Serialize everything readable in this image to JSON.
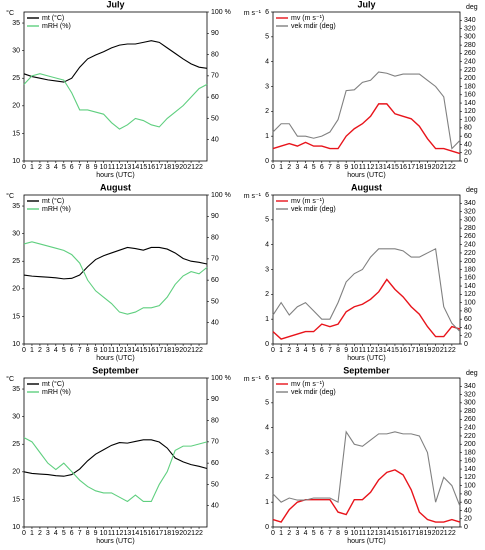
{
  "chart_data": [
    {
      "type": "line",
      "title": "July",
      "xlabel": "hours (UTC)",
      "ylabel": "°C",
      "legend": "upper left",
      "x": [
        0,
        1,
        2,
        3,
        4,
        5,
        6,
        7,
        8,
        9,
        10,
        11,
        12,
        13,
        14,
        15,
        16,
        17,
        18,
        19,
        20,
        21,
        22,
        23
      ],
      "xlim": [
        0,
        23
      ],
      "xticks": [
        0,
        1,
        2,
        3,
        4,
        5,
        6,
        7,
        8,
        9,
        10,
        11,
        12,
        13,
        14,
        15,
        16,
        17,
        18,
        19,
        20,
        21,
        22
      ],
      "ylim": [
        10,
        37
      ],
      "yticks": [
        10,
        15,
        20,
        25,
        30,
        35
      ],
      "y2lim": [
        30,
        100
      ],
      "y2ticks": [
        40,
        50,
        60,
        70,
        80,
        90,
        {
          "value": 100,
          "label": "100 %"
        }
      ],
      "series": [
        {
          "name": "mt (°C)",
          "color": "#000000",
          "values": [
            25.8,
            25.3,
            25,
            24.7,
            24.5,
            24.3,
            25,
            27,
            28.5,
            29.2,
            29.8,
            30.5,
            31,
            31.2,
            31.2,
            31.5,
            31.8,
            31.5,
            30.5,
            29.5,
            28.5,
            27.6,
            27,
            26.8
          ]
        },
        {
          "name": "mRH (%)",
          "color": "#5fcf7f",
          "axis": "y2",
          "values": [
            66,
            70,
            71,
            70,
            69,
            68,
            62,
            54,
            54,
            53,
            52,
            48,
            45,
            47,
            50,
            49,
            47,
            46,
            50,
            53,
            56,
            60,
            64,
            66
          ]
        }
      ]
    },
    {
      "type": "line",
      "title": "July",
      "xlabel": "hours (UTC)",
      "ylabel": "m s⁻¹",
      "y2label": "deg",
      "legend": "upper left",
      "x": [
        0,
        1,
        2,
        3,
        4,
        5,
        6,
        7,
        8,
        9,
        10,
        11,
        12,
        13,
        14,
        15,
        16,
        17,
        18,
        19,
        20,
        21,
        22,
        23
      ],
      "xlim": [
        0,
        23
      ],
      "xticks": [
        0,
        1,
        2,
        3,
        4,
        5,
        6,
        7,
        8,
        9,
        10,
        11,
        12,
        13,
        14,
        15,
        16,
        17,
        18,
        19,
        20,
        21,
        22
      ],
      "ylim": [
        0,
        6
      ],
      "yticks": [
        0,
        1,
        2,
        3,
        4,
        5,
        6
      ],
      "y2lim": [
        0,
        360
      ],
      "y2ticks": [
        0,
        20,
        40,
        60,
        80,
        100,
        120,
        140,
        160,
        180,
        200,
        220,
        240,
        260,
        280,
        300,
        320,
        340
      ],
      "series": [
        {
          "name": "mv (m s⁻¹)",
          "color": "#e8141b",
          "values": [
            0.5,
            0.6,
            0.7,
            0.6,
            0.75,
            0.6,
            0.6,
            0.5,
            0.5,
            1.0,
            1.3,
            1.5,
            1.8,
            2.3,
            2.3,
            1.9,
            1.8,
            1.7,
            1.4,
            0.9,
            0.5,
            0.5,
            0.4,
            0.3
          ]
        },
        {
          "name": "vek mdir (deg)",
          "color": "#808080",
          "axis": "y2",
          "values": [
            70,
            90,
            90,
            60,
            60,
            55,
            60,
            70,
            100,
            170,
            172,
            190,
            195,
            215,
            212,
            205,
            210,
            210,
            210,
            195,
            180,
            155,
            30,
            50
          ]
        }
      ]
    },
    {
      "type": "line",
      "title": "August",
      "xlabel": "hours (UTC)",
      "ylabel": "°C",
      "legend": "upper left",
      "x": [
        0,
        1,
        2,
        3,
        4,
        5,
        6,
        7,
        8,
        9,
        10,
        11,
        12,
        13,
        14,
        15,
        16,
        17,
        18,
        19,
        20,
        21,
        22,
        23
      ],
      "xlim": [
        0,
        23
      ],
      "xticks": [
        0,
        1,
        2,
        3,
        4,
        5,
        6,
        7,
        8,
        9,
        10,
        11,
        12,
        13,
        14,
        15,
        16,
        17,
        18,
        19,
        20,
        21,
        22
      ],
      "ylim": [
        10,
        37
      ],
      "yticks": [
        10,
        15,
        20,
        25,
        30,
        35
      ],
      "y2lim": [
        30,
        100
      ],
      "y2ticks": [
        40,
        50,
        60,
        70,
        80,
        90,
        {
          "value": 100,
          "label": "100 %"
        }
      ],
      "series": [
        {
          "name": "mt (°C)",
          "color": "#000000",
          "values": [
            22.5,
            22.3,
            22.2,
            22.1,
            22,
            21.8,
            21.9,
            22.5,
            24,
            25.3,
            26,
            26.5,
            27,
            27.5,
            27.3,
            27,
            27.5,
            27.5,
            27.2,
            26.5,
            25.5,
            25,
            24.8,
            24.5
          ]
        },
        {
          "name": "mRH (%)",
          "color": "#5fcf7f",
          "axis": "y2",
          "values": [
            77,
            78,
            77,
            76,
            75,
            74,
            72,
            68,
            60,
            55,
            52,
            49,
            45,
            44,
            45,
            47,
            47,
            48,
            52,
            58,
            62,
            64,
            63,
            66
          ]
        }
      ]
    },
    {
      "type": "line",
      "title": "August",
      "xlabel": "hours (UTC)",
      "ylabel": "m s⁻¹",
      "y2label": "deg",
      "legend": "upper left",
      "x": [
        0,
        1,
        2,
        3,
        4,
        5,
        6,
        7,
        8,
        9,
        10,
        11,
        12,
        13,
        14,
        15,
        16,
        17,
        18,
        19,
        20,
        21,
        22,
        23
      ],
      "xlim": [
        0,
        23
      ],
      "xticks": [
        0,
        1,
        2,
        3,
        4,
        5,
        6,
        7,
        8,
        9,
        10,
        11,
        12,
        13,
        14,
        15,
        16,
        17,
        18,
        19,
        20,
        21,
        22
      ],
      "ylim": [
        0,
        6
      ],
      "yticks": [
        0,
        1,
        2,
        3,
        4,
        5,
        6
      ],
      "y2lim": [
        0,
        360
      ],
      "y2ticks": [
        0,
        20,
        40,
        60,
        80,
        100,
        120,
        140,
        160,
        180,
        200,
        220,
        240,
        260,
        280,
        300,
        320,
        340
      ],
      "series": [
        {
          "name": "mv (m s⁻¹)",
          "color": "#e8141b",
          "values": [
            0.5,
            0.2,
            0.3,
            0.4,
            0.5,
            0.5,
            0.8,
            0.7,
            0.8,
            1.3,
            1.5,
            1.6,
            1.8,
            2.1,
            2.6,
            2.2,
            1.9,
            1.5,
            1.2,
            0.7,
            0.3,
            0.3,
            0.7,
            0.6
          ]
        },
        {
          "name": "vek mdir (deg)",
          "color": "#808080",
          "axis": "y2",
          "values": [
            70,
            100,
            70,
            90,
            100,
            80,
            60,
            60,
            100,
            150,
            170,
            180,
            210,
            230,
            230,
            230,
            225,
            210,
            210,
            220,
            230,
            90,
            50,
            30
          ]
        }
      ]
    },
    {
      "type": "line",
      "title": "September",
      "xlabel": "hours (UTC)",
      "ylabel": "°C",
      "legend": "upper left",
      "x": [
        0,
        1,
        2,
        3,
        4,
        5,
        6,
        7,
        8,
        9,
        10,
        11,
        12,
        13,
        14,
        15,
        16,
        17,
        18,
        19,
        20,
        21,
        22,
        23
      ],
      "xlim": [
        0,
        23
      ],
      "xticks": [
        0,
        1,
        2,
        3,
        4,
        5,
        6,
        7,
        8,
        9,
        10,
        11,
        12,
        13,
        14,
        15,
        16,
        17,
        18,
        19,
        20,
        21,
        22
      ],
      "ylim": [
        10,
        37
      ],
      "yticks": [
        10,
        15,
        20,
        25,
        30,
        35
      ],
      "y2lim": [
        30,
        100
      ],
      "y2ticks": [
        40,
        50,
        60,
        70,
        80,
        90,
        {
          "value": 100,
          "label": "100 %"
        }
      ],
      "series": [
        {
          "name": "mt (°C)",
          "color": "#000000",
          "values": [
            20,
            19.7,
            19.6,
            19.5,
            19.3,
            19.2,
            19.5,
            20.5,
            22,
            23.2,
            24,
            24.8,
            25.3,
            25.2,
            25.5,
            25.8,
            25.8,
            25.4,
            24.3,
            22.5,
            21.8,
            21.3,
            21,
            20.6
          ]
        },
        {
          "name": "mRH (%)",
          "color": "#5fcf7f",
          "axis": "y2",
          "values": [
            72,
            70,
            65,
            60,
            57,
            60,
            56,
            52,
            49,
            47,
            46,
            46,
            44,
            42,
            45,
            42,
            42,
            50,
            56,
            66,
            68,
            68,
            69,
            70
          ]
        }
      ]
    },
    {
      "type": "line",
      "title": "September",
      "xlabel": "hours (UTC)",
      "ylabel": "m s⁻¹",
      "y2label": "deg",
      "legend": "upper left",
      "x": [
        0,
        1,
        2,
        3,
        4,
        5,
        6,
        7,
        8,
        9,
        10,
        11,
        12,
        13,
        14,
        15,
        16,
        17,
        18,
        19,
        20,
        21,
        22,
        23
      ],
      "xlim": [
        0,
        23
      ],
      "xticks": [
        0,
        1,
        2,
        3,
        4,
        5,
        6,
        7,
        8,
        9,
        10,
        11,
        12,
        13,
        14,
        15,
        16,
        17,
        18,
        19,
        20,
        21,
        22
      ],
      "ylim": [
        0,
        6
      ],
      "yticks": [
        0,
        1,
        2,
        3,
        4,
        5,
        6
      ],
      "y2lim": [
        0,
        360
      ],
      "y2ticks": [
        0,
        20,
        40,
        60,
        80,
        100,
        120,
        140,
        160,
        180,
        200,
        220,
        240,
        260,
        280,
        300,
        320,
        340
      ],
      "series": [
        {
          "name": "mv (m s⁻¹)",
          "color": "#e8141b",
          "values": [
            0.3,
            0.2,
            0.7,
            1.0,
            1.1,
            1.1,
            1.1,
            1.1,
            0.6,
            0.5,
            1.1,
            1.1,
            1.4,
            1.9,
            2.2,
            2.3,
            2.1,
            1.5,
            0.6,
            0.3,
            0.2,
            0.2,
            0.3,
            0.2
          ]
        },
        {
          "name": "vek mdir (deg)",
          "color": "#808080",
          "axis": "y2",
          "values": [
            80,
            60,
            70,
            65,
            65,
            70,
            70,
            70,
            60,
            230,
            200,
            195,
            210,
            225,
            225,
            230,
            225,
            225,
            220,
            180,
            60,
            120,
            100,
            50
          ]
        }
      ]
    }
  ]
}
